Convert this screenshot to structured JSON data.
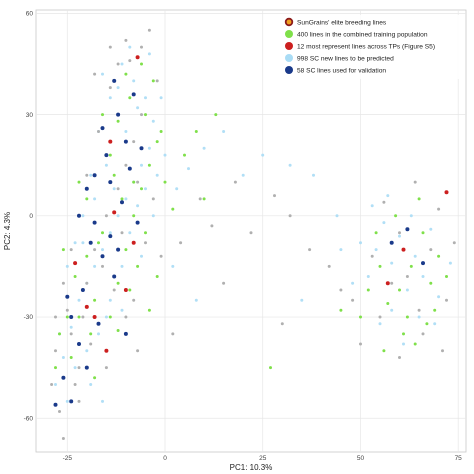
{
  "chart_data": {
    "type": "scatter",
    "title": "",
    "xlabel": "PC1: 10.3%",
    "ylabel": "PC2: 4.3%",
    "xlim": [
      -33,
      77
    ],
    "ylim": [
      -70,
      61
    ],
    "x_ticks": [
      -25,
      0,
      25,
      50,
      75
    ],
    "y_ticks": [
      -60,
      -30,
      0,
      30,
      60
    ],
    "x_tick_labels": [
      "-25",
      "0",
      "25",
      "50",
      "75"
    ],
    "y_tick_labels": [
      "-60",
      "-30",
      "0",
      "30",
      "60"
    ],
    "grid": true,
    "legend_position": "top-right",
    "series": [
      {
        "name": "SunGrains' elite breeding lines",
        "color": "#b0b0b0",
        "edge_color": "#8b1a1a",
        "points": [
          [
            -27,
            -58
          ],
          [
            -26,
            -66
          ],
          [
            -28,
            -40
          ],
          [
            -24,
            -35
          ],
          [
            -29,
            -50
          ],
          [
            -22,
            -45
          ],
          [
            -25,
            -28
          ],
          [
            -20,
            -20
          ],
          [
            -18,
            -10
          ],
          [
            -15,
            0
          ],
          [
            -12,
            8
          ],
          [
            -10,
            15
          ],
          [
            -8,
            22
          ],
          [
            -6,
            30
          ],
          [
            -14,
            38
          ],
          [
            -9,
            46
          ],
          [
            -4,
            55
          ],
          [
            -2,
            40
          ],
          [
            -7,
            10
          ],
          [
            -11,
            -5
          ],
          [
            -16,
            -15
          ],
          [
            -21,
            -30
          ],
          [
            -23,
            -50
          ],
          [
            -19,
            -38
          ],
          [
            -13,
            -22
          ],
          [
            -5,
            -8
          ],
          [
            -3,
            5
          ],
          [
            -8,
            -25
          ],
          [
            -17,
            25
          ],
          [
            -12,
            45
          ],
          [
            -6,
            50
          ],
          [
            -20,
            12
          ],
          [
            -24,
            -10
          ],
          [
            -10,
            -30
          ],
          [
            -26,
            -20
          ],
          [
            4,
            -8
          ],
          [
            9,
            5
          ],
          [
            12,
            -3
          ],
          [
            18,
            10
          ],
          [
            22,
            -5
          ],
          [
            28,
            6
          ],
          [
            32,
            0
          ],
          [
            37,
            -10
          ],
          [
            42,
            -15
          ],
          [
            45,
            -22
          ],
          [
            53,
            -12
          ],
          [
            55,
            -30
          ],
          [
            58,
            -20
          ],
          [
            60,
            -5
          ],
          [
            62,
            -18
          ],
          [
            65,
            -28
          ],
          [
            68,
            -10
          ],
          [
            70,
            2
          ],
          [
            72,
            -25
          ],
          [
            74,
            -8
          ],
          [
            56,
            4
          ],
          [
            64,
            10
          ],
          [
            50,
            -38
          ],
          [
            48,
            -25
          ],
          [
            66,
            -35
          ],
          [
            60,
            -42
          ],
          [
            71,
            -40
          ],
          [
            2,
            -35
          ],
          [
            -1,
            -12
          ],
          [
            15,
            -20
          ],
          [
            30,
            -32
          ],
          [
            -18,
            42
          ],
          [
            -14,
            50
          ],
          [
            -10,
            52
          ],
          [
            -7,
            -40
          ],
          [
            -22,
            -55
          ],
          [
            -28,
            -30
          ],
          [
            -15,
            -45
          ]
        ]
      },
      {
        "name": "400 lines in the combined training population",
        "color": "#7fe04a",
        "points": [
          [
            -22,
            -30
          ],
          [
            -18,
            -25
          ],
          [
            -15,
            -40
          ],
          [
            -12,
            -20
          ],
          [
            -20,
            -12
          ],
          [
            -16,
            -5
          ],
          [
            -10,
            -10
          ],
          [
            -8,
            0
          ],
          [
            -6,
            8
          ],
          [
            -4,
            15
          ],
          [
            -2,
            22
          ],
          [
            -5,
            30
          ],
          [
            -9,
            35
          ],
          [
            -12,
            28
          ],
          [
            -14,
            18
          ],
          [
            -11,
            5
          ],
          [
            -7,
            -15
          ],
          [
            -19,
            -35
          ],
          [
            -24,
            -42
          ],
          [
            -21,
            -22
          ],
          [
            -17,
            -8
          ],
          [
            -13,
            12
          ],
          [
            -3,
            40
          ],
          [
            -1,
            25
          ],
          [
            -6,
            45
          ],
          [
            -10,
            42
          ],
          [
            -16,
            30
          ],
          [
            -23,
            -18
          ],
          [
            -18,
            -48
          ],
          [
            -25,
            -30
          ],
          [
            -14,
            -30
          ],
          [
            -9,
            -22
          ],
          [
            -5,
            -5
          ],
          [
            2,
            2
          ],
          [
            5,
            18
          ],
          [
            8,
            25
          ],
          [
            13,
            30
          ],
          [
            -20,
            5
          ],
          [
            -22,
            10
          ],
          [
            -26,
            -10
          ],
          [
            -8,
            10
          ],
          [
            -12,
            -34
          ],
          [
            55,
            -15
          ],
          [
            58,
            -8
          ],
          [
            60,
            -22
          ],
          [
            63,
            -15
          ],
          [
            66,
            -5
          ],
          [
            68,
            -20
          ],
          [
            70,
            -12
          ],
          [
            62,
            -30
          ],
          [
            57,
            -26
          ],
          [
            52,
            -22
          ],
          [
            54,
            -5
          ],
          [
            59,
            0
          ],
          [
            65,
            5
          ],
          [
            72,
            -18
          ],
          [
            61,
            -35
          ],
          [
            67,
            -32
          ],
          [
            50,
            -30
          ],
          [
            56,
            -40
          ],
          [
            64,
            -38
          ],
          [
            69,
            -28
          ],
          [
            45,
            -28
          ],
          [
            27,
            -45
          ],
          [
            -28,
            -45
          ],
          [
            -27,
            -35
          ],
          [
            -4,
            -28
          ],
          [
            -2,
            -18
          ],
          [
            0,
            10
          ],
          [
            10,
            5
          ]
        ]
      },
      {
        "name": "12 most represent lines across TPs (Figure S5)",
        "color": "#cc1f1f",
        "points": [
          [
            -7,
            47
          ],
          [
            -14,
            22
          ],
          [
            -13,
            1
          ],
          [
            -10,
            -22
          ],
          [
            -20,
            -27
          ],
          [
            -18,
            -30
          ],
          [
            -15,
            -40
          ],
          [
            -8,
            -8
          ],
          [
            -23,
            -14
          ],
          [
            72,
            7
          ],
          [
            61,
            -10
          ],
          [
            57,
            -20
          ]
        ]
      },
      {
        "name": "998 SC new lines to be predicted",
        "color": "#a9dcf5",
        "points": [
          [
            -20,
            -20
          ],
          [
            -18,
            -15
          ],
          [
            -16,
            -10
          ],
          [
            -14,
            -5
          ],
          [
            -12,
            0
          ],
          [
            -10,
            5
          ],
          [
            -8,
            10
          ],
          [
            -6,
            15
          ],
          [
            -4,
            20
          ],
          [
            -3,
            28
          ],
          [
            -5,
            35
          ],
          [
            -8,
            40
          ],
          [
            -11,
            45
          ],
          [
            -14,
            35
          ],
          [
            -17,
            25
          ],
          [
            -19,
            12
          ],
          [
            -21,
            0
          ],
          [
            -23,
            -8
          ],
          [
            -25,
            -15
          ],
          [
            -22,
            -25
          ],
          [
            -24,
            -33
          ],
          [
            -26,
            -42
          ],
          [
            -28,
            -50
          ],
          [
            -20,
            -40
          ],
          [
            -17,
            -35
          ],
          [
            -14,
            -25
          ],
          [
            -11,
            -15
          ],
          [
            -9,
            -5
          ],
          [
            -7,
            3
          ],
          [
            -5,
            8
          ],
          [
            -2,
            12
          ],
          [
            0,
            18
          ],
          [
            -13,
            8
          ],
          [
            -15,
            15
          ],
          [
            -18,
            5
          ],
          [
            -21,
            -8
          ],
          [
            -10,
            25
          ],
          [
            -7,
            32
          ],
          [
            -12,
            38
          ],
          [
            -16,
            42
          ],
          [
            -9,
            50
          ],
          [
            -4,
            48
          ],
          [
            -1,
            35
          ],
          [
            -3,
            0
          ],
          [
            -6,
            -12
          ],
          [
            -27,
            -35
          ],
          [
            -23,
            -45
          ],
          [
            -19,
            -50
          ],
          [
            -16,
            -55
          ],
          [
            -25,
            -55
          ],
          [
            3,
            8
          ],
          [
            6,
            14
          ],
          [
            10,
            20
          ],
          [
            15,
            25
          ],
          [
            20,
            12
          ],
          [
            25,
            18
          ],
          [
            32,
            15
          ],
          [
            38,
            12
          ],
          [
            44,
            0
          ],
          [
            2,
            -15
          ],
          [
            8,
            -25
          ],
          [
            52,
            -18
          ],
          [
            54,
            -10
          ],
          [
            56,
            -2
          ],
          [
            58,
            -14
          ],
          [
            60,
            -6
          ],
          [
            62,
            -22
          ],
          [
            64,
            -12
          ],
          [
            66,
            -18
          ],
          [
            68,
            -4
          ],
          [
            70,
            -24
          ],
          [
            58,
            -28
          ],
          [
            55,
            -32
          ],
          [
            61,
            -38
          ],
          [
            65,
            -30
          ],
          [
            48,
            -20
          ],
          [
            50,
            -8
          ],
          [
            53,
            3
          ],
          [
            57,
            6
          ],
          [
            63,
            0
          ],
          [
            69,
            -32
          ],
          [
            73,
            -14
          ],
          [
            45,
            -10
          ],
          [
            35,
            -25
          ],
          [
            -15,
            -30
          ],
          [
            -11,
            -28
          ]
        ]
      },
      {
        "name": "58 SC lines used for validation",
        "color": "#1a3a8a",
        "points": [
          [
            -12,
            30
          ],
          [
            -10,
            22
          ],
          [
            -15,
            18
          ],
          [
            -18,
            12
          ],
          [
            -20,
            8
          ],
          [
            -22,
            0
          ],
          [
            -19,
            -8
          ],
          [
            -16,
            -12
          ],
          [
            -13,
            -18
          ],
          [
            -21,
            -22
          ],
          [
            -24,
            -30
          ],
          [
            -22,
            -38
          ],
          [
            -26,
            -48
          ],
          [
            -28,
            -56
          ],
          [
            -24,
            -55
          ],
          [
            -20,
            -45
          ],
          [
            -17,
            -32
          ],
          [
            -14,
            -6
          ],
          [
            -11,
            4
          ],
          [
            -9,
            14
          ],
          [
            -16,
            26
          ],
          [
            -8,
            36
          ],
          [
            -13,
            40
          ],
          [
            -6,
            20
          ],
          [
            -25,
            -24
          ],
          [
            -18,
            -2
          ],
          [
            -12,
            -10
          ],
          [
            -10,
            -35
          ],
          [
            -7,
            -2
          ],
          [
            -14,
            10
          ],
          [
            58,
            -8
          ],
          [
            62,
            -4
          ],
          [
            66,
            -14
          ]
        ]
      }
    ]
  }
}
